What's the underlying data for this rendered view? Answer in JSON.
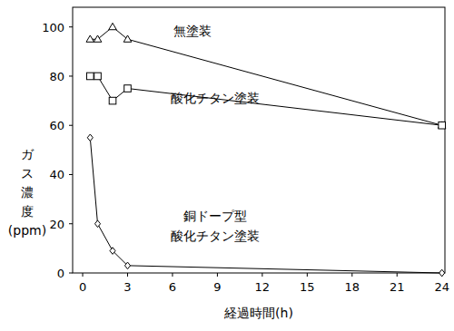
{
  "chart_data": {
    "type": "line",
    "x_label": "経過時間(h)",
    "y_label": "ガス濃度(ppm)",
    "x": [
      0.5,
      1,
      2,
      3,
      24
    ],
    "series": [
      {
        "name": "無塗装",
        "color": "#000000",
        "marker": "triangle",
        "values": [
          95,
          95,
          100,
          95,
          60
        ]
      },
      {
        "name": "酸化チタン塗装",
        "color": "#000000",
        "marker": "square",
        "values": [
          80,
          80,
          70,
          75,
          60
        ]
      },
      {
        "name": "銅ドープ型酸化チタン塗装",
        "color": "#000000",
        "marker": "diamond",
        "values": [
          55,
          20,
          9,
          3,
          0
        ]
      }
    ],
    "xlim": [
      -0.67,
      24.2
    ],
    "xticks": [
      0,
      3,
      6,
      9,
      12,
      15,
      18,
      21,
      24
    ],
    "ylim": [
      0,
      108
    ],
    "yticks": [
      0,
      20,
      40,
      60,
      80,
      100
    ],
    "grid": false
  }
}
